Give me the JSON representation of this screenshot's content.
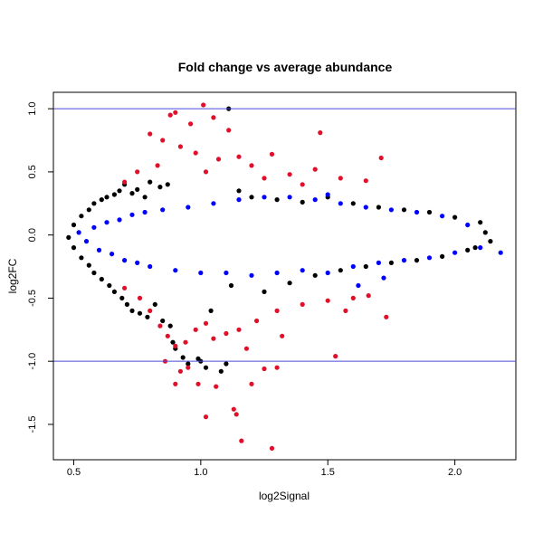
{
  "chart_data": {
    "type": "scatter",
    "title": "Fold change vs average abundance",
    "xlabel": "log2Signal",
    "ylabel": "log2FC",
    "xlim": [
      0.42,
      2.24
    ],
    "ylim": [
      -1.78,
      1.13
    ],
    "x_ticks": [
      0.5,
      1.0,
      1.5,
      2.0
    ],
    "x_tick_labels": [
      "0.5",
      "1.0",
      "1.5",
      "2.0"
    ],
    "y_ticks": [
      -1.5,
      -1.0,
      -0.5,
      0.0,
      0.5,
      1.0
    ],
    "y_tick_labels": [
      "-1.5",
      "-1.0",
      "-0.5",
      "0.0",
      "0.5",
      "1.0"
    ],
    "hlines": [
      1.0,
      -1.0
    ],
    "hline_color": "#4b4bdc",
    "grid": false,
    "legend": "none",
    "series": [
      {
        "color": "#000000",
        "points": [
          [
            0.48,
            -0.02
          ],
          [
            0.5,
            0.08
          ],
          [
            0.5,
            -0.1
          ],
          [
            0.53,
            0.15
          ],
          [
            0.53,
            -0.18
          ],
          [
            0.56,
            0.2
          ],
          [
            0.56,
            -0.24
          ],
          [
            0.58,
            0.25
          ],
          [
            0.58,
            -0.3
          ],
          [
            0.61,
            0.28
          ],
          [
            0.61,
            -0.35
          ],
          [
            0.63,
            0.3
          ],
          [
            0.64,
            -0.4
          ],
          [
            0.66,
            0.32
          ],
          [
            0.66,
            -0.45
          ],
          [
            0.68,
            0.35
          ],
          [
            0.69,
            -0.5
          ],
          [
            0.7,
            0.4
          ],
          [
            0.71,
            -0.55
          ],
          [
            0.73,
            0.33
          ],
          [
            0.73,
            -0.6
          ],
          [
            0.75,
            0.36
          ],
          [
            0.76,
            -0.62
          ],
          [
            0.78,
            0.3
          ],
          [
            0.79,
            -0.65
          ],
          [
            0.8,
            0.42
          ],
          [
            0.82,
            -0.55
          ],
          [
            0.84,
            0.38
          ],
          [
            0.85,
            -0.68
          ],
          [
            0.87,
            0.4
          ],
          [
            0.88,
            -0.72
          ],
          [
            0.89,
            -0.85
          ],
          [
            0.9,
            -0.9
          ],
          [
            0.93,
            -0.97
          ],
          [
            0.95,
            -1.02
          ],
          [
            0.99,
            -0.98
          ],
          [
            1.0,
            -1.0
          ],
          [
            1.02,
            -1.05
          ],
          [
            1.04,
            -0.6
          ],
          [
            1.08,
            -1.08
          ],
          [
            1.1,
            -1.02
          ],
          [
            1.11,
            1.0
          ],
          [
            1.12,
            -0.4
          ],
          [
            1.15,
            0.35
          ],
          [
            1.2,
            0.3
          ],
          [
            1.25,
            -0.45
          ],
          [
            1.3,
            0.28
          ],
          [
            1.35,
            -0.38
          ],
          [
            1.4,
            0.26
          ],
          [
            1.45,
            -0.32
          ],
          [
            1.5,
            0.3
          ],
          [
            1.55,
            -0.28
          ],
          [
            1.6,
            0.25
          ],
          [
            1.65,
            -0.25
          ],
          [
            1.7,
            0.22
          ],
          [
            1.75,
            -0.22
          ],
          [
            1.8,
            0.2
          ],
          [
            1.85,
            -0.2
          ],
          [
            1.9,
            0.18
          ],
          [
            1.95,
            -0.17
          ],
          [
            2.0,
            0.14
          ],
          [
            2.05,
            -0.12
          ],
          [
            2.1,
            0.1
          ],
          [
            2.14,
            -0.05
          ],
          [
            2.12,
            0.02
          ],
          [
            2.08,
            -0.1
          ]
        ]
      },
      {
        "color": "#0000ff",
        "points": [
          [
            0.52,
            0.02
          ],
          [
            0.55,
            -0.05
          ],
          [
            0.58,
            0.06
          ],
          [
            0.6,
            -0.12
          ],
          [
            0.63,
            0.1
          ],
          [
            0.65,
            -0.15
          ],
          [
            0.68,
            0.12
          ],
          [
            0.7,
            -0.2
          ],
          [
            0.73,
            0.16
          ],
          [
            0.75,
            -0.22
          ],
          [
            0.78,
            0.18
          ],
          [
            0.8,
            -0.25
          ],
          [
            0.85,
            0.2
          ],
          [
            0.9,
            -0.28
          ],
          [
            0.95,
            0.22
          ],
          [
            1.0,
            -0.3
          ],
          [
            1.05,
            0.25
          ],
          [
            1.1,
            -0.3
          ],
          [
            1.15,
            0.28
          ],
          [
            1.2,
            -0.32
          ],
          [
            1.25,
            0.3
          ],
          [
            1.3,
            -0.3
          ],
          [
            1.35,
            0.3
          ],
          [
            1.4,
            -0.28
          ],
          [
            1.45,
            0.28
          ],
          [
            1.5,
            -0.3
          ],
          [
            1.55,
            0.25
          ],
          [
            1.6,
            -0.25
          ],
          [
            1.65,
            0.22
          ],
          [
            1.7,
            -0.22
          ],
          [
            1.75,
            0.2
          ],
          [
            1.8,
            -0.2
          ],
          [
            1.85,
            0.18
          ],
          [
            1.9,
            -0.18
          ],
          [
            1.95,
            0.15
          ],
          [
            2.0,
            -0.14
          ],
          [
            2.05,
            0.08
          ],
          [
            2.1,
            -0.1
          ],
          [
            2.18,
            -0.14
          ],
          [
            1.72,
            -0.34
          ],
          [
            1.62,
            -0.4
          ],
          [
            1.5,
            0.32
          ]
        ]
      },
      {
        "color": "#e0102a",
        "points": [
          [
            0.88,
            0.95
          ],
          [
            0.9,
            0.97
          ],
          [
            0.96,
            0.88
          ],
          [
            1.01,
            1.03
          ],
          [
            1.05,
            0.93
          ],
          [
            1.11,
            0.83
          ],
          [
            1.47,
            0.81
          ],
          [
            1.71,
            0.61
          ],
          [
            0.8,
            0.8
          ],
          [
            0.85,
            0.75
          ],
          [
            0.92,
            0.7
          ],
          [
            0.98,
            0.65
          ],
          [
            1.07,
            0.6
          ],
          [
            1.15,
            0.62
          ],
          [
            1.2,
            0.55
          ],
          [
            1.28,
            0.64
          ],
          [
            1.35,
            0.48
          ],
          [
            1.45,
            0.52
          ],
          [
            1.55,
            0.45
          ],
          [
            1.65,
            0.43
          ],
          [
            0.75,
            0.5
          ],
          [
            0.83,
            0.55
          ],
          [
            1.02,
            0.5
          ],
          [
            1.25,
            0.45
          ],
          [
            0.7,
            0.42
          ],
          [
            1.4,
            0.4
          ],
          [
            0.7,
            -0.42
          ],
          [
            0.76,
            -0.5
          ],
          [
            0.8,
            -0.6
          ],
          [
            0.84,
            -0.72
          ],
          [
            0.87,
            -0.8
          ],
          [
            0.9,
            -0.88
          ],
          [
            0.94,
            -0.85
          ],
          [
            0.98,
            -0.75
          ],
          [
            1.02,
            -0.7
          ],
          [
            1.05,
            -0.82
          ],
          [
            1.1,
            -0.78
          ],
          [
            1.15,
            -0.75
          ],
          [
            1.18,
            -0.9
          ],
          [
            1.22,
            -0.68
          ],
          [
            1.3,
            -0.6
          ],
          [
            1.4,
            -0.55
          ],
          [
            1.5,
            -0.52
          ],
          [
            1.57,
            -0.6
          ],
          [
            1.6,
            -0.5
          ],
          [
            1.66,
            -0.48
          ],
          [
            1.73,
            -0.65
          ],
          [
            1.53,
            -0.96
          ],
          [
            1.32,
            -0.8
          ],
          [
            0.86,
            -1.0
          ],
          [
            0.92,
            -1.08
          ],
          [
            0.95,
            -1.05
          ],
          [
            0.99,
            -1.18
          ],
          [
            1.02,
            -1.44
          ],
          [
            1.06,
            -1.2
          ],
          [
            1.13,
            -1.38
          ],
          [
            1.14,
            -1.42
          ],
          [
            1.16,
            -1.63
          ],
          [
            1.2,
            -1.18
          ],
          [
            1.25,
            -1.06
          ],
          [
            1.28,
            -1.69
          ],
          [
            0.9,
            -1.18
          ],
          [
            1.3,
            -1.05
          ]
        ]
      }
    ]
  }
}
